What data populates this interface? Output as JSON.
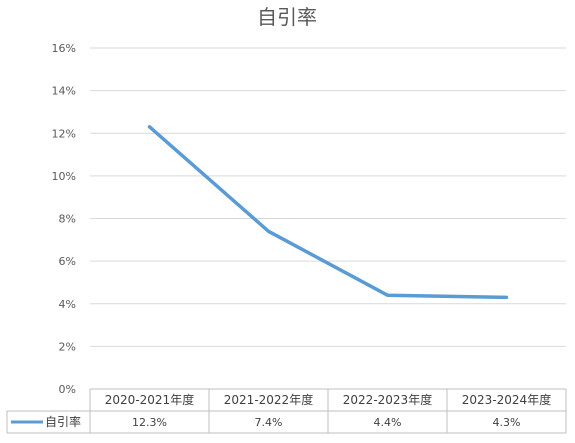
{
  "chart_data": {
    "type": "line",
    "title": "自引率",
    "categories": [
      "2020-2021年度",
      "2021-2022年度",
      "2022-2023年度",
      "2023-2024年度"
    ],
    "series": [
      {
        "name": "自引率",
        "values": [
          12.3,
          7.4,
          4.4,
          4.3
        ],
        "labels": [
          "12.3%",
          "7.4%",
          "4.4%",
          "4.3%"
        ]
      }
    ],
    "y_ticks": [
      "0%",
      "2%",
      "4%",
      "6%",
      "8%",
      "10%",
      "12%",
      "14%",
      "16%"
    ],
    "ylim": [
      0,
      16
    ],
    "grid": true,
    "legend": "data-table-left",
    "colors": {
      "line": "#5b9bd5",
      "text": "#595959",
      "grid": "#d9d9d9"
    }
  }
}
